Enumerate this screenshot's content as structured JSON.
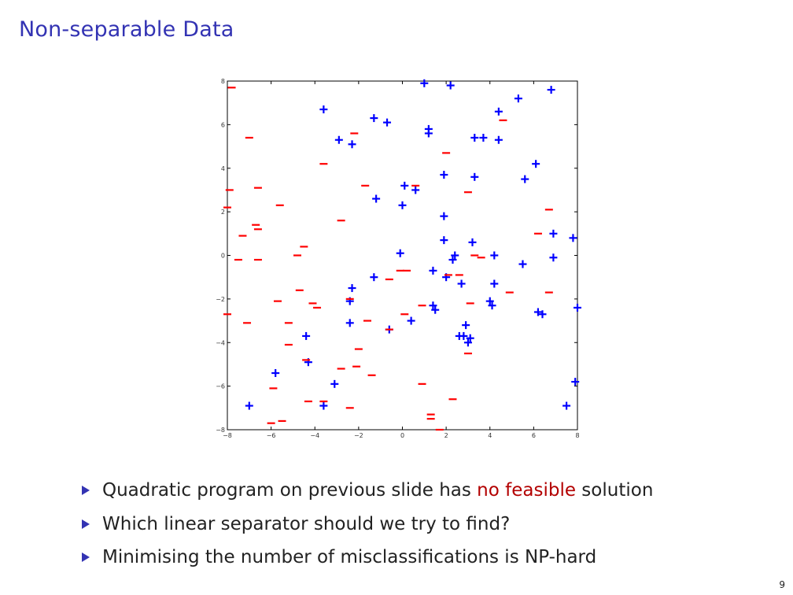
{
  "slide": {
    "title": "Non-separable Data",
    "page_number": "9",
    "bullet1_before": "Quadratic program on previous slide has ",
    "bullet1_highlight": "no feasible",
    "bullet1_after": " solution",
    "bullet2": "Which linear separator should we try to find?",
    "bullet3": "Minimising the number of misclassifications is NP-hard",
    "highlight_color": "#b30000",
    "title_color": "#3333b3"
  },
  "chart_data": {
    "type": "scatter",
    "title": "",
    "xlabel": "",
    "ylabel": "",
    "xlim": [
      -8,
      8
    ],
    "ylim": [
      -8,
      8
    ],
    "xticks": [
      -8,
      -6,
      -4,
      -2,
      0,
      2,
      4,
      6,
      8
    ],
    "yticks": [
      -8,
      -6,
      -4,
      -2,
      0,
      2,
      4,
      6,
      8
    ],
    "xtick_labels": [
      "−8",
      "−6",
      "−4",
      "−2",
      "0",
      "2",
      "4",
      "6",
      "8"
    ],
    "ytick_labels": [
      "−8",
      "−6",
      "−4",
      "−2",
      "0",
      "2",
      "4",
      "6",
      "8"
    ],
    "grid": false,
    "series": [
      {
        "marker": "+",
        "color": "#0000ff",
        "points": [
          [
            1.0,
            7.9
          ],
          [
            2.2,
            7.8
          ],
          [
            6.8,
            7.6
          ],
          [
            5.3,
            7.2
          ],
          [
            -3.6,
            6.7
          ],
          [
            4.4,
            6.6
          ],
          [
            -1.3,
            6.3
          ],
          [
            -0.7,
            6.1
          ],
          [
            1.2,
            5.8
          ],
          [
            1.2,
            5.6
          ],
          [
            -2.9,
            5.3
          ],
          [
            -2.3,
            5.1
          ],
          [
            3.3,
            5.4
          ],
          [
            3.7,
            5.4
          ],
          [
            4.4,
            5.3
          ],
          [
            6.1,
            4.2
          ],
          [
            1.9,
            3.7
          ],
          [
            3.3,
            3.6
          ],
          [
            5.6,
            3.5
          ],
          [
            0.1,
            3.2
          ],
          [
            0.6,
            3.0
          ],
          [
            -1.2,
            2.6
          ],
          [
            0.0,
            2.3
          ],
          [
            1.9,
            1.8
          ],
          [
            6.9,
            1.0
          ],
          [
            7.8,
            0.8
          ],
          [
            1.9,
            0.7
          ],
          [
            3.2,
            0.6
          ],
          [
            -0.1,
            0.1
          ],
          [
            2.4,
            0.0
          ],
          [
            4.2,
            0.0
          ],
          [
            6.9,
            -0.1
          ],
          [
            2.3,
            -0.2
          ],
          [
            5.5,
            -0.4
          ],
          [
            1.4,
            -0.7
          ],
          [
            -1.3,
            -1.0
          ],
          [
            2.0,
            -1.0
          ],
          [
            2.7,
            -1.3
          ],
          [
            4.2,
            -1.3
          ],
          [
            -2.3,
            -1.5
          ],
          [
            -2.4,
            -2.1
          ],
          [
            4.0,
            -2.1
          ],
          [
            1.4,
            -2.3
          ],
          [
            4.1,
            -2.3
          ],
          [
            1.5,
            -2.5
          ],
          [
            6.2,
            -2.6
          ],
          [
            6.4,
            -2.7
          ],
          [
            -2.4,
            -3.1
          ],
          [
            0.4,
            -3.0
          ],
          [
            -0.6,
            -3.4
          ],
          [
            2.9,
            -3.2
          ],
          [
            -4.4,
            -3.7
          ],
          [
            2.6,
            -3.7
          ],
          [
            2.8,
            -3.7
          ],
          [
            3.1,
            -3.8
          ],
          [
            3.0,
            -4.0
          ],
          [
            -4.3,
            -4.9
          ],
          [
            -5.8,
            -5.4
          ],
          [
            -3.1,
            -5.9
          ],
          [
            7.9,
            -5.8
          ],
          [
            -7.0,
            -6.9
          ],
          [
            -3.6,
            -6.9
          ],
          [
            7.5,
            -6.9
          ],
          [
            8.0,
            -2.4
          ]
        ]
      },
      {
        "marker": "_",
        "color": "#ff0000",
        "points": [
          [
            -7.8,
            7.7
          ],
          [
            -7.0,
            5.4
          ],
          [
            4.6,
            6.2
          ],
          [
            -2.2,
            5.6
          ],
          [
            2.0,
            4.7
          ],
          [
            -3.6,
            4.2
          ],
          [
            -1.7,
            3.2
          ],
          [
            0.6,
            3.2
          ],
          [
            -6.6,
            3.1
          ],
          [
            -7.9,
            3.0
          ],
          [
            3.0,
            2.9
          ],
          [
            -5.6,
            2.3
          ],
          [
            -8.0,
            2.2
          ],
          [
            6.7,
            2.1
          ],
          [
            -2.8,
            1.6
          ],
          [
            -6.7,
            1.4
          ],
          [
            -6.6,
            1.2
          ],
          [
            -7.3,
            0.9
          ],
          [
            6.2,
            1.0
          ],
          [
            -4.5,
            0.4
          ],
          [
            -7.5,
            -0.2
          ],
          [
            -6.6,
            -0.2
          ],
          [
            -4.8,
            0.0
          ],
          [
            3.3,
            0.0
          ],
          [
            3.6,
            -0.1
          ],
          [
            -0.1,
            -0.7
          ],
          [
            0.2,
            -0.7
          ],
          [
            2.1,
            -0.9
          ],
          [
            2.6,
            -0.9
          ],
          [
            -0.6,
            -1.1
          ],
          [
            -4.7,
            -1.6
          ],
          [
            4.9,
            -1.7
          ],
          [
            6.7,
            -1.7
          ],
          [
            -5.7,
            -2.1
          ],
          [
            -2.4,
            -2.0
          ],
          [
            -4.1,
            -2.2
          ],
          [
            3.1,
            -2.2
          ],
          [
            0.9,
            -2.3
          ],
          [
            -3.9,
            -2.4
          ],
          [
            -8.0,
            -2.7
          ],
          [
            0.1,
            -2.7
          ],
          [
            -7.1,
            -3.1
          ],
          [
            -5.2,
            -3.1
          ],
          [
            -1.6,
            -3.0
          ],
          [
            -0.6,
            -3.4
          ],
          [
            -5.2,
            -4.1
          ],
          [
            -2.0,
            -4.3
          ],
          [
            3.0,
            -4.5
          ],
          [
            -4.4,
            -4.8
          ],
          [
            -2.1,
            -5.1
          ],
          [
            -2.8,
            -5.2
          ],
          [
            -1.4,
            -5.5
          ],
          [
            -5.9,
            -6.1
          ],
          [
            0.9,
            -5.9
          ],
          [
            -4.3,
            -6.7
          ],
          [
            -3.6,
            -6.7
          ],
          [
            2.3,
            -6.6
          ],
          [
            -2.4,
            -7.0
          ],
          [
            1.3,
            -7.3
          ],
          [
            1.3,
            -7.5
          ],
          [
            -5.5,
            -7.6
          ],
          [
            -6.0,
            -7.7
          ],
          [
            1.7,
            -8.0
          ]
        ]
      }
    ]
  }
}
